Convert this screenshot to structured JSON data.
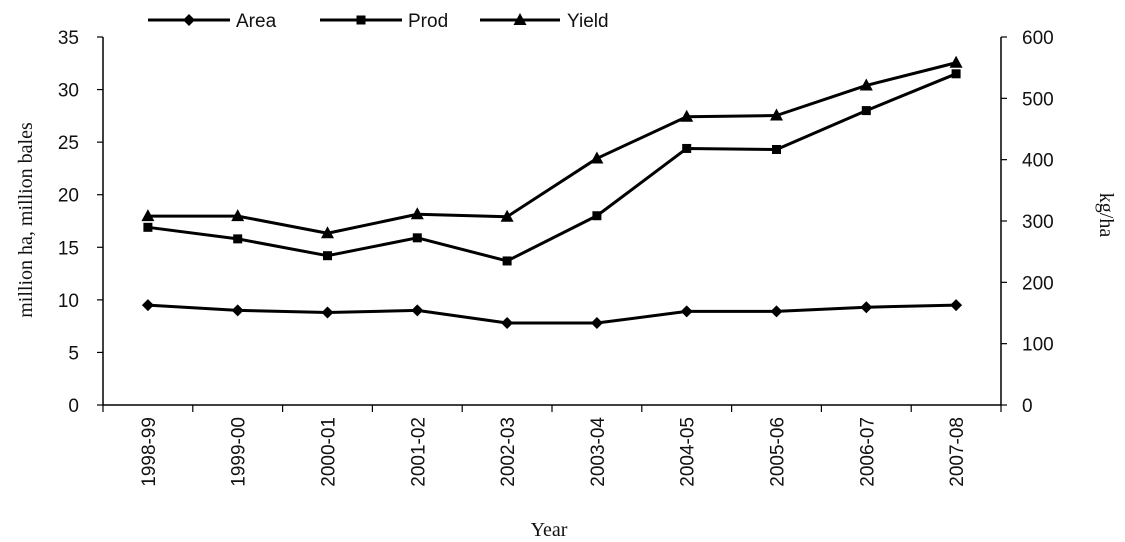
{
  "chart_data": {
    "type": "line",
    "categories": [
      "1998-99",
      "1999-00",
      "2000-01",
      "2001-02",
      "2002-03",
      "2003-04",
      "2004-05",
      "2005-06",
      "2006-07",
      "2007-08"
    ],
    "series": [
      {
        "name": "Area",
        "axis": "left",
        "marker": "diamond",
        "values": [
          9.5,
          9.0,
          8.8,
          9.0,
          7.8,
          7.8,
          8.9,
          8.9,
          9.3,
          9.5
        ]
      },
      {
        "name": "Prod",
        "axis": "left",
        "marker": "square",
        "values": [
          16.9,
          15.8,
          14.2,
          15.9,
          13.7,
          18.0,
          24.4,
          24.3,
          28.0,
          31.5
        ]
      },
      {
        "name": "Yield",
        "axis": "right",
        "marker": "triangle",
        "values": [
          308,
          308,
          280,
          311,
          307,
          402,
          470,
          472,
          521,
          558
        ]
      }
    ],
    "xlabel": "Year",
    "ylabel": "million ha, million bales",
    "y2label": "kg/ha",
    "ylim": [
      0,
      35
    ],
    "yticks": [
      "0",
      "5",
      "10",
      "15",
      "20",
      "25",
      "30",
      "35"
    ],
    "y2lim": [
      0,
      600
    ],
    "y2ticks": [
      "0",
      "100",
      "200",
      "300",
      "400",
      "500",
      "600"
    ],
    "grid": false,
    "legend_position": "top-left",
    "line_color": "#000000"
  }
}
